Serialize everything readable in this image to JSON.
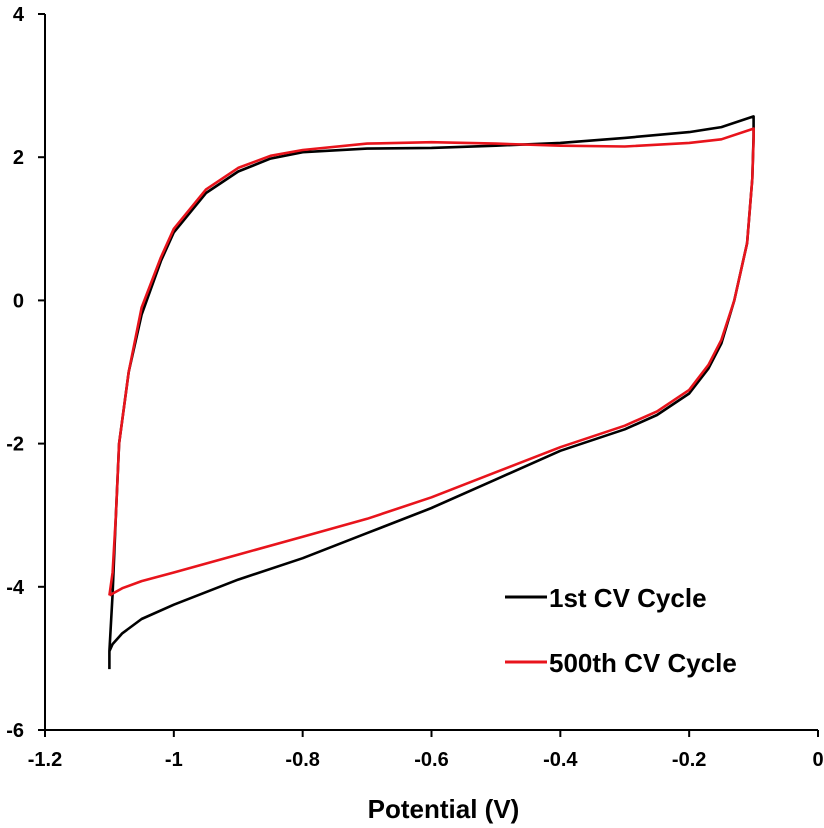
{
  "chart_data": {
    "type": "line",
    "title": "",
    "xlabel": "Potential  (V)",
    "ylabel": "",
    "xlim": [
      -1.2,
      0
    ],
    "ylim": [
      -6,
      4
    ],
    "x_ticks": [
      "-1.2",
      "-1",
      "-0.8",
      "-0.6",
      "-0.4",
      "-0.2",
      "0"
    ],
    "y_ticks": [
      "4",
      "2",
      "0",
      "-2",
      "-4",
      "-6"
    ],
    "grid": false,
    "legend_position": "bottom-right",
    "series": [
      {
        "name": "1st CV Cycle",
        "color": "#000000",
        "x": [
          -1.1,
          -1.1,
          -1.095,
          -1.09,
          -1.085,
          -1.07,
          -1.05,
          -1.02,
          -1.0,
          -0.95,
          -0.9,
          -0.85,
          -0.8,
          -0.7,
          -0.6,
          -0.5,
          -0.4,
          -0.3,
          -0.2,
          -0.15,
          -0.1,
          -0.1,
          -0.102,
          -0.11,
          -0.13,
          -0.15,
          -0.17,
          -0.2,
          -0.25,
          -0.3,
          -0.4,
          -0.5,
          -0.6,
          -0.7,
          -0.8,
          -0.9,
          -1.0,
          -1.05,
          -1.08,
          -1.095,
          -1.1
        ],
        "y": [
          -5.15,
          -4.9,
          -4.1,
          -3.0,
          -2.0,
          -1.0,
          -0.2,
          0.55,
          0.95,
          1.5,
          1.8,
          1.98,
          2.07,
          2.12,
          2.13,
          2.16,
          2.2,
          2.27,
          2.35,
          2.42,
          2.57,
          2.3,
          1.7,
          0.8,
          0.0,
          -0.6,
          -0.95,
          -1.3,
          -1.6,
          -1.8,
          -2.1,
          -2.5,
          -2.9,
          -3.25,
          -3.6,
          -3.9,
          -4.25,
          -4.45,
          -4.65,
          -4.8,
          -4.9
        ]
      },
      {
        "name": "500th CV Cycle",
        "color": "#e8141c",
        "x": [
          -1.1,
          -1.095,
          -1.09,
          -1.085,
          -1.07,
          -1.05,
          -1.02,
          -1.0,
          -0.95,
          -0.9,
          -0.85,
          -0.8,
          -0.7,
          -0.6,
          -0.5,
          -0.4,
          -0.3,
          -0.2,
          -0.15,
          -0.1,
          -0.1,
          -0.102,
          -0.11,
          -0.13,
          -0.15,
          -0.17,
          -0.2,
          -0.25,
          -0.3,
          -0.4,
          -0.5,
          -0.6,
          -0.7,
          -0.8,
          -0.9,
          -1.0,
          -1.05,
          -1.08,
          -1.1
        ],
        "y": [
          -4.12,
          -3.8,
          -3.0,
          -2.0,
          -1.0,
          -0.1,
          0.6,
          1.0,
          1.55,
          1.85,
          2.02,
          2.1,
          2.19,
          2.21,
          2.19,
          2.16,
          2.15,
          2.2,
          2.25,
          2.4,
          2.25,
          1.7,
          0.8,
          0.0,
          -0.55,
          -0.9,
          -1.25,
          -1.55,
          -1.75,
          -2.05,
          -2.4,
          -2.75,
          -3.05,
          -3.3,
          -3.55,
          -3.8,
          -3.92,
          -4.02,
          -4.12
        ]
      }
    ]
  }
}
